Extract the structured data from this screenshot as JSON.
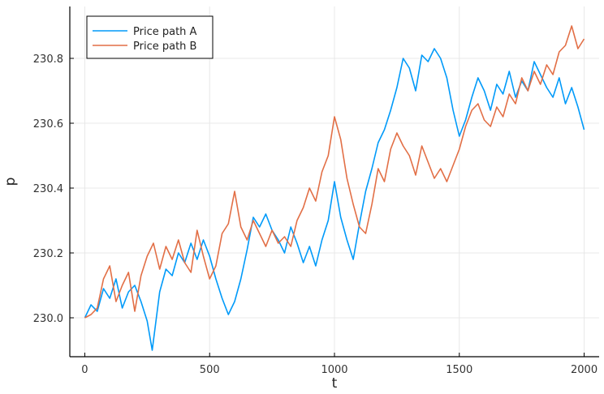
{
  "chart_data": {
    "type": "line",
    "title": "",
    "xlabel": "t",
    "ylabel": "p",
    "xlim": [
      -60,
      2060
    ],
    "ylim": [
      229.88,
      230.96
    ],
    "xticks": [
      0,
      500,
      1000,
      1500,
      2000
    ],
    "yticks": [
      230.0,
      230.2,
      230.4,
      230.6,
      230.8
    ],
    "xtick_labels": [
      "0",
      "500",
      "1000",
      "1500",
      "2000"
    ],
    "ytick_labels": [
      "230.0",
      "230.2",
      "230.4",
      "230.6",
      "230.8"
    ],
    "grid": true,
    "legend_position": "top-left",
    "series": [
      {
        "name": "Price path A",
        "color": "#009af9",
        "x": [
          0,
          25,
          50,
          75,
          100,
          125,
          150,
          175,
          200,
          225,
          250,
          270,
          300,
          325,
          350,
          375,
          400,
          425,
          450,
          475,
          500,
          525,
          550,
          575,
          600,
          625,
          650,
          675,
          700,
          725,
          750,
          775,
          800,
          825,
          850,
          875,
          900,
          925,
          950,
          975,
          1000,
          1025,
          1050,
          1075,
          1100,
          1125,
          1150,
          1175,
          1200,
          1225,
          1250,
          1275,
          1300,
          1325,
          1350,
          1375,
          1400,
          1425,
          1450,
          1475,
          1500,
          1525,
          1550,
          1575,
          1600,
          1625,
          1650,
          1675,
          1700,
          1725,
          1750,
          1775,
          1800,
          1825,
          1850,
          1875,
          1900,
          1925,
          1950,
          1975,
          2000
        ],
        "y": [
          230.0,
          230.04,
          230.02,
          230.09,
          230.06,
          230.12,
          230.03,
          230.08,
          230.1,
          230.05,
          229.99,
          229.9,
          230.08,
          230.15,
          230.13,
          230.2,
          230.17,
          230.23,
          230.18,
          230.24,
          230.19,
          230.12,
          230.06,
          230.01,
          230.05,
          230.12,
          230.21,
          230.31,
          230.28,
          230.32,
          230.27,
          230.24,
          230.2,
          230.28,
          230.23,
          230.17,
          230.22,
          230.16,
          230.24,
          230.3,
          230.42,
          230.31,
          230.24,
          230.18,
          230.29,
          230.39,
          230.46,
          230.54,
          230.58,
          230.64,
          230.71,
          230.8,
          230.77,
          230.7,
          230.81,
          230.79,
          230.83,
          230.8,
          230.74,
          230.64,
          230.56,
          230.61,
          230.68,
          230.74,
          230.7,
          230.64,
          230.72,
          230.69,
          230.76,
          230.68,
          230.73,
          230.7,
          230.79,
          230.75,
          230.71,
          230.68,
          230.74,
          230.66,
          230.71,
          230.65,
          230.58
        ]
      },
      {
        "name": "Price path B",
        "color": "#e26f46",
        "x": [
          0,
          25,
          50,
          75,
          100,
          125,
          150,
          175,
          200,
          225,
          250,
          275,
          300,
          325,
          350,
          375,
          400,
          425,
          450,
          475,
          500,
          525,
          550,
          575,
          600,
          625,
          650,
          675,
          700,
          725,
          750,
          775,
          800,
          825,
          850,
          875,
          900,
          925,
          950,
          975,
          1000,
          1025,
          1050,
          1075,
          1100,
          1125,
          1150,
          1175,
          1200,
          1225,
          1250,
          1275,
          1300,
          1325,
          1350,
          1375,
          1400,
          1425,
          1450,
          1475,
          1500,
          1525,
          1550,
          1575,
          1600,
          1625,
          1650,
          1675,
          1700,
          1725,
          1750,
          1775,
          1800,
          1825,
          1850,
          1875,
          1900,
          1925,
          1950,
          1975,
          2000
        ],
        "y": [
          230.0,
          230.01,
          230.03,
          230.12,
          230.16,
          230.05,
          230.1,
          230.14,
          230.02,
          230.13,
          230.19,
          230.23,
          230.15,
          230.22,
          230.18,
          230.24,
          230.17,
          230.14,
          230.27,
          230.19,
          230.12,
          230.16,
          230.26,
          230.29,
          230.39,
          230.28,
          230.24,
          230.3,
          230.26,
          230.22,
          230.27,
          230.23,
          230.25,
          230.22,
          230.3,
          230.34,
          230.4,
          230.36,
          230.45,
          230.5,
          230.62,
          230.55,
          230.43,
          230.35,
          230.28,
          230.26,
          230.35,
          230.46,
          230.42,
          230.52,
          230.57,
          230.53,
          230.5,
          230.44,
          230.53,
          230.48,
          230.43,
          230.46,
          230.42,
          230.47,
          230.52,
          230.59,
          230.64,
          230.66,
          230.61,
          230.59,
          230.65,
          230.62,
          230.69,
          230.66,
          230.74,
          230.7,
          230.76,
          230.72,
          230.78,
          230.75,
          230.82,
          230.84,
          230.9,
          230.83,
          230.86
        ]
      }
    ]
  }
}
